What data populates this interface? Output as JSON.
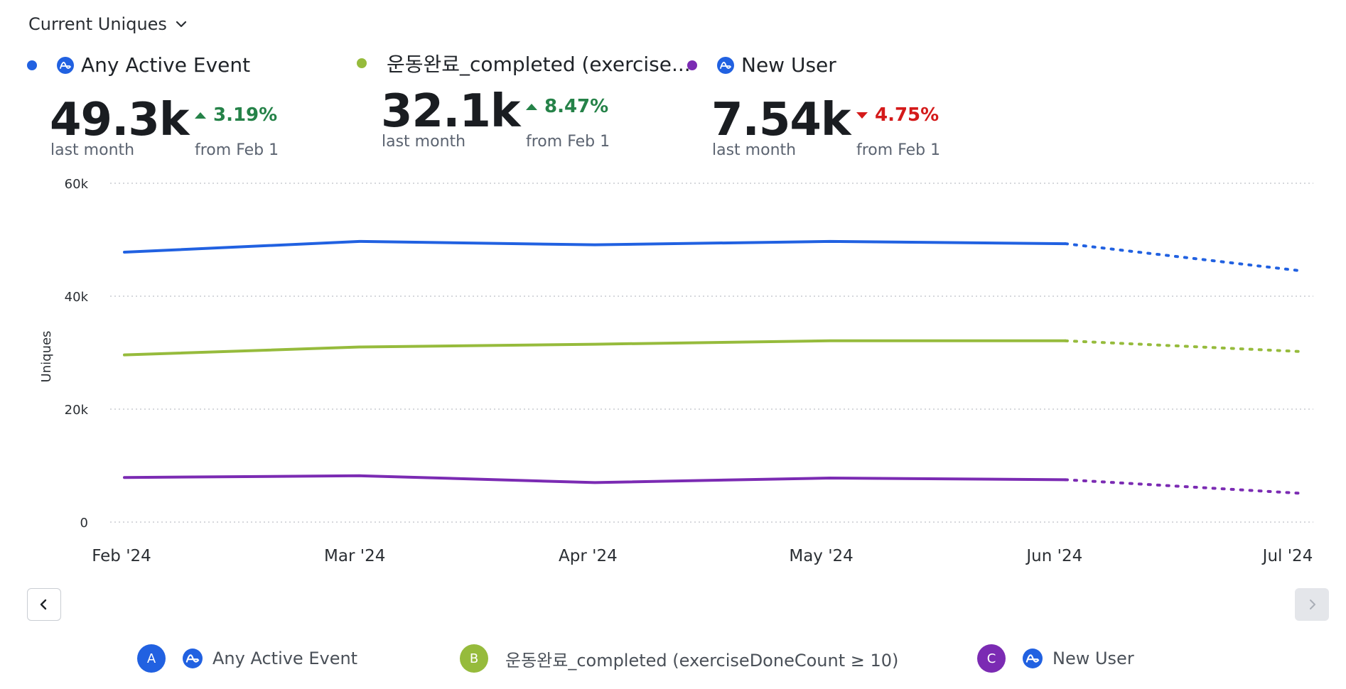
{
  "header": {
    "metric_label": "Current Uniques"
  },
  "colors": {
    "blue": "#2161e1",
    "green": "#96bb3c",
    "purple": "#7b2bb3",
    "up": "#258248",
    "down": "#d41a1a",
    "grid": "#c9ccd1"
  },
  "kpis": [
    {
      "name": "Any Active Event",
      "value": "49.3k",
      "period": "last month",
      "delta": "3.19%",
      "direction": "up",
      "from": "from Feb 1",
      "has_icon": true
    },
    {
      "name": "운동완료_completed (exercise...",
      "value": "32.1k",
      "period": "last month",
      "delta": "8.47%",
      "direction": "up",
      "from": "from Feb 1",
      "has_icon": false
    },
    {
      "name": "New User",
      "value": "7.54k",
      "period": "last month",
      "delta": "4.75%",
      "direction": "down",
      "from": "from Feb 1",
      "has_icon": true
    }
  ],
  "legend": [
    {
      "badge": "A",
      "label": "Any Active Event",
      "has_icon": true
    },
    {
      "badge": "B",
      "label": "운동완료_completed (exerciseDoneCount ≥ 10)",
      "has_icon": false
    },
    {
      "badge": "C",
      "label": "New User",
      "has_icon": true
    }
  ],
  "chart_data": {
    "type": "line",
    "x": [
      "Feb '24",
      "Mar '24",
      "Apr '24",
      "May '24",
      "Jun '24",
      "Jul '24"
    ],
    "ylabel": "Uniques",
    "ylim": [
      0,
      60000
    ],
    "yticks": [
      0,
      20000,
      40000,
      60000
    ],
    "ytick_labels": [
      "0",
      "20k",
      "40k",
      "60k"
    ],
    "grid": true,
    "projection_from_index": 4,
    "series": [
      {
        "name": "Any Active Event",
        "color": "#2161e1",
        "values": [
          47800,
          49700,
          49100,
          49700,
          49300,
          44500
        ]
      },
      {
        "name": "운동완료_completed (exerciseDoneCount ≥ 10)",
        "color": "#96bb3c",
        "values": [
          29600,
          31000,
          31500,
          32100,
          32100,
          30200
        ]
      },
      {
        "name": "New User",
        "color": "#7b2bb3",
        "values": [
          7900,
          8200,
          7000,
          7800,
          7500,
          5100
        ]
      }
    ]
  }
}
